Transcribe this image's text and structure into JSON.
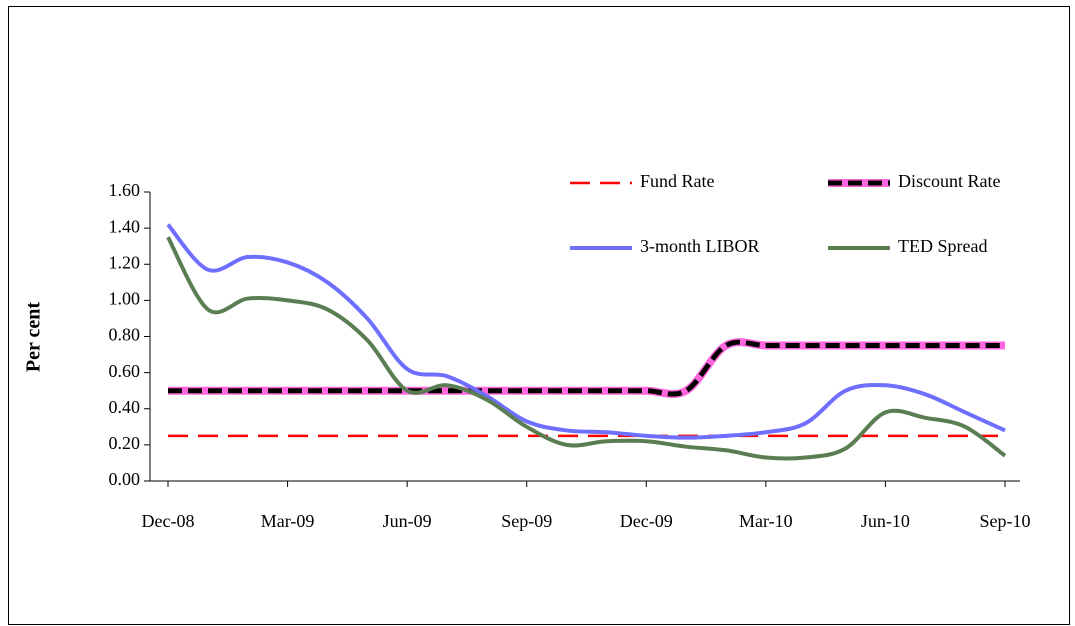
{
  "chart_data": {
    "type": "line",
    "y_label": "Per cent",
    "categories": [
      "Dec-08",
      null,
      null,
      "Mar-09",
      null,
      null,
      "Jun-09",
      null,
      null,
      "Sep-09",
      null,
      null,
      "Dec-09",
      null,
      null,
      "Mar-10",
      null,
      null,
      "Jun-10",
      null,
      null,
      "Sep-10"
    ],
    "ylim": [
      0,
      1.6
    ],
    "yticks": [
      {
        "value": 0,
        "label": "0.00"
      },
      {
        "value": 0.2,
        "label": "0.20"
      },
      {
        "value": 0.4,
        "label": "0.40"
      },
      {
        "value": 0.6,
        "label": "0.60"
      },
      {
        "value": 0.8,
        "label": "0.80"
      },
      {
        "value": 1,
        "label": "1.00"
      },
      {
        "value": 1.2,
        "label": "1.20"
      },
      {
        "value": 1.4,
        "label": "1.40"
      },
      {
        "value": 1.6,
        "label": "1.60"
      }
    ],
    "series": [
      {
        "name": "Fund Rate",
        "color": "#ff0000",
        "dashed": true,
        "values": [
          0.25,
          0.25,
          0.25,
          0.25,
          0.25,
          0.25,
          0.25,
          0.25,
          0.25,
          0.25,
          0.25,
          0.25,
          0.25,
          0.25,
          0.25,
          0.25,
          0.25,
          0.25,
          0.25,
          0.25,
          0.25,
          0.25
        ]
      },
      {
        "name": "Discount Rate",
        "color": "#ff66dd",
        "dash_color": "#000000",
        "values": [
          0.5,
          0.5,
          0.5,
          0.5,
          0.5,
          0.5,
          0.5,
          0.5,
          0.5,
          0.5,
          0.5,
          0.5,
          0.5,
          0.5,
          0.75,
          0.75,
          0.75,
          0.75,
          0.75,
          0.75,
          0.75,
          0.75
        ]
      },
      {
        "name": "3-month LIBOR",
        "color": "#6f6fff",
        "values": [
          1.42,
          1.17,
          1.24,
          1.21,
          1.1,
          0.9,
          0.62,
          0.58,
          0.47,
          0.33,
          0.28,
          0.27,
          0.25,
          0.24,
          0.25,
          0.27,
          0.32,
          0.5,
          0.53,
          0.48,
          0.38,
          0.28
        ]
      },
      {
        "name": "TED Spread",
        "color": "#5b7d52",
        "values": [
          1.35,
          0.95,
          1.01,
          1.0,
          0.95,
          0.78,
          0.5,
          0.53,
          0.45,
          0.3,
          0.2,
          0.22,
          0.22,
          0.19,
          0.17,
          0.13,
          0.13,
          0.18,
          0.38,
          0.35,
          0.3,
          0.14
        ]
      }
    ]
  }
}
